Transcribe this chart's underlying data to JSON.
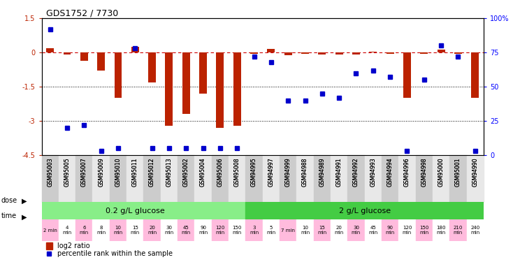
{
  "title": "GDS1752 / 7730",
  "samples": [
    "GSM95003",
    "GSM95005",
    "GSM95007",
    "GSM95009",
    "GSM95010",
    "GSM95011",
    "GSM95012",
    "GSM95013",
    "GSM95002",
    "GSM95004",
    "GSM95006",
    "GSM95008",
    "GSM94995",
    "GSM94997",
    "GSM94999",
    "GSM94988",
    "GSM94989",
    "GSM94991",
    "GSM94992",
    "GSM94993",
    "GSM94994",
    "GSM94996",
    "GSM94998",
    "GSM95000",
    "GSM95001",
    "GSM94990"
  ],
  "log2_ratio": [
    0.2,
    -0.1,
    -0.35,
    -0.8,
    -2.0,
    0.25,
    -1.3,
    -3.2,
    -2.7,
    -1.8,
    -3.3,
    -3.2,
    -0.07,
    0.15,
    -0.12,
    -0.05,
    -0.1,
    -0.08,
    -0.1,
    0.05,
    -0.06,
    -2.0,
    -0.05,
    0.12,
    -0.07,
    -2.0
  ],
  "percentile": [
    92,
    20,
    22,
    3,
    5,
    78,
    5,
    5,
    5,
    5,
    5,
    5,
    72,
    68,
    40,
    40,
    45,
    42,
    60,
    62,
    57,
    3,
    55,
    80,
    72,
    3
  ],
  "dose_labels": [
    "0.2 g/L glucose",
    "2 g/L glucose"
  ],
  "dose_split": 12,
  "time_labels": [
    "2 min",
    "4\nmin",
    "6\nmin",
    "8\nmin",
    "10\nmin",
    "15\nmin",
    "20\nmin",
    "30\nmin",
    "45\nmin",
    "90\nmin",
    "120\nmin",
    "150\nmin",
    "3\nmin",
    "5\nmin",
    "7 min",
    "10\nmin",
    "15\nmin",
    "20\nmin",
    "30\nmin",
    "45\nmin",
    "90\nmin",
    "120\nmin",
    "150\nmin",
    "180\nmin",
    "210\nmin",
    "240\nmin"
  ],
  "ylim_left": [
    -4.5,
    1.5
  ],
  "ylim_right": [
    0,
    100
  ],
  "yticks_left": [
    1.5,
    0,
    -1.5,
    -3,
    -4.5
  ],
  "yticks_right": [
    100,
    75,
    50,
    25,
    0
  ],
  "ytick_labels_right": [
    "100%",
    "75",
    "50",
    "25",
    "0"
  ],
  "hlines": [
    -1.5,
    -3.0
  ],
  "bar_color": "#bb2200",
  "square_color": "#0000cc",
  "zero_line_color": "#cc0000",
  "bg_color": "#ffffff",
  "dose_color_low": "#88ee88",
  "dose_color_high": "#44cc44",
  "time_color": "#ffaacc",
  "time_alt_color": "#ffffff",
  "legend_bar": "log2 ratio",
  "legend_sq": "percentile rank within the sample"
}
